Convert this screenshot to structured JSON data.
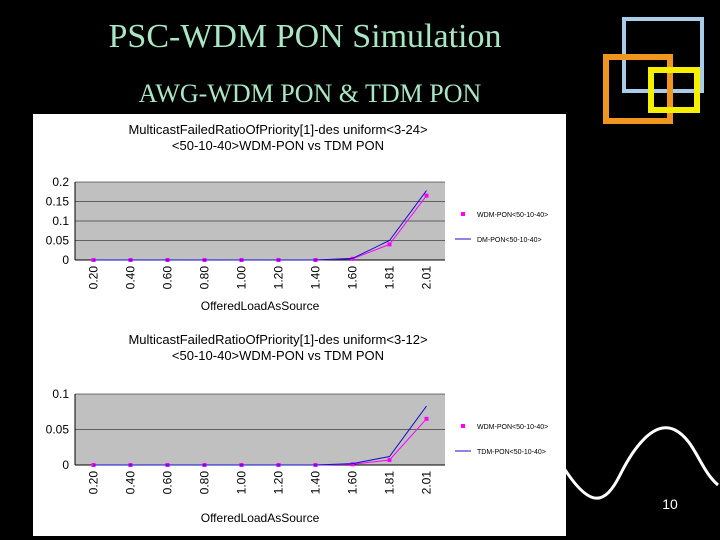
{
  "slide": {
    "title": "PSC-WDM PON Simulation",
    "subtitle": "AWG-WDM PON & TDM PON",
    "page_number": "10"
  },
  "colors": {
    "background": "#000000",
    "title": "#a8e6c4",
    "wdm_series": "#ff00ff",
    "tdm_series": "#1010c8",
    "plot_area": "#c0c0c0",
    "deco_blue": "#a8cdea",
    "deco_orange": "#f0961e",
    "deco_yellow": "#f5f000"
  },
  "chart_data": [
    {
      "type": "line",
      "title": "MulticastFailedRatioOfPriority[1]-des uniform<3-24>",
      "subtitle": "<50-10-40>WDM-PON vs TDM PON",
      "xlabel": "OfferedLoadAsSource",
      "ylabel": "",
      "categories": [
        "0.20",
        "0.40",
        "0.60",
        "0.80",
        "1.00",
        "1.20",
        "1.40",
        "1.60",
        "1.81",
        "2.01"
      ],
      "yticks": [
        "0",
        "0.05",
        "0.1",
        "0.15",
        "0.2"
      ],
      "ylim": [
        0,
        0.2
      ],
      "grid": true,
      "legend_placement": "right",
      "series": [
        {
          "name": "WDM-PON<50-10-40>",
          "values": [
            0,
            0,
            0,
            0,
            0,
            0,
            0,
            0.003,
            0.04,
            0.165
          ]
        },
        {
          "name": "DM-PON<50-10-40>",
          "values": [
            0,
            0,
            0,
            0,
            0,
            0,
            0,
            0.004,
            0.05,
            0.178
          ]
        }
      ]
    },
    {
      "type": "line",
      "title": "MulticastFailedRatioOfPriority[1]-des uniform<3-12>",
      "subtitle": "<50-10-40>WDM-PON vs TDM PON",
      "xlabel": "OfferedLoadAsSource",
      "ylabel": "",
      "categories": [
        "0.20",
        "0.40",
        "0.60",
        "0.80",
        "1.00",
        "1.20",
        "1.40",
        "1.60",
        "1.81",
        "2.01"
      ],
      "yticks": [
        "0",
        "0.05",
        "0.1"
      ],
      "ylim": [
        0,
        0.1
      ],
      "grid": true,
      "legend_placement": "right",
      "series": [
        {
          "name": "WDM-PON<50-10-40>",
          "values": [
            0,
            0,
            0,
            0,
            0,
            0,
            0,
            0.001,
            0.007,
            0.065
          ]
        },
        {
          "name": "TDM-PON<50-10-40>",
          "values": [
            0,
            0,
            0,
            0,
            0,
            0,
            0,
            0.002,
            0.012,
            0.083
          ]
        }
      ]
    }
  ]
}
